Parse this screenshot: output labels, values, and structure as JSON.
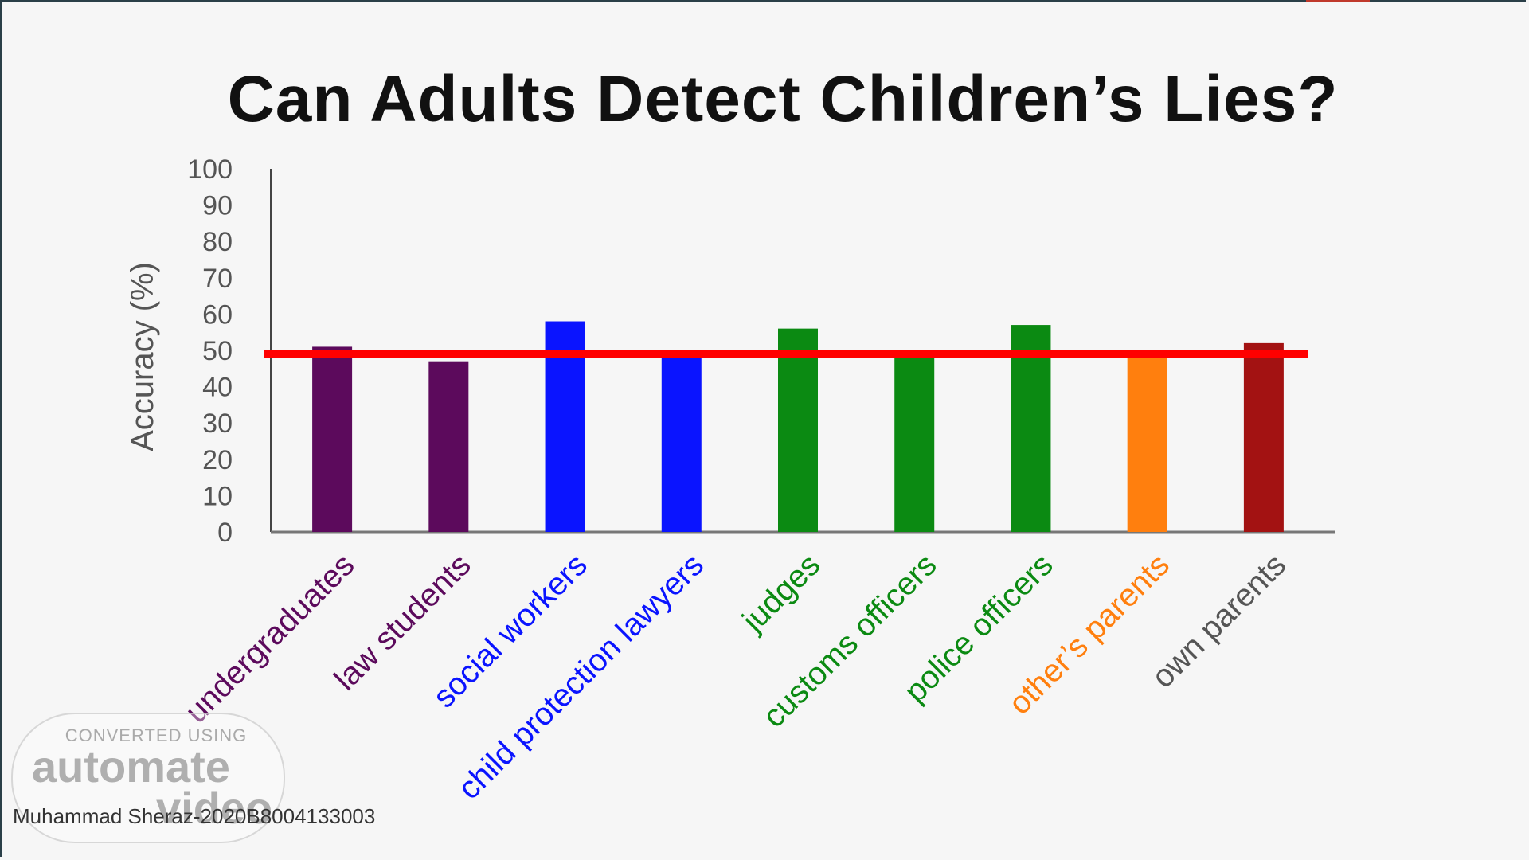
{
  "title": "Can Adults Detect Children’s Lies?",
  "chart_data": {
    "type": "bar",
    "ylabel": "Accuracy (%)",
    "ylim": [
      0,
      100
    ],
    "yticks": [
      0,
      10,
      20,
      30,
      40,
      50,
      60,
      70,
      80,
      90,
      100
    ],
    "categories": [
      "undergraduates",
      "law students",
      "social workers",
      "child protection lawyers",
      "judges",
      "customs officers",
      "police officers",
      "other’s parents",
      "own parents"
    ],
    "values": [
      51,
      47,
      58,
      48,
      56,
      48,
      57,
      48,
      52
    ],
    "bar_colors": [
      "#5c0a5c",
      "#5c0a5c",
      "#0a14ff",
      "#0a14ff",
      "#0b8a12",
      "#0b8a12",
      "#0b8a12",
      "#ff7f0e",
      "#a31212"
    ],
    "label_colors": [
      "#5c0a5c",
      "#5c0a5c",
      "#0a14ff",
      "#0a14ff",
      "#0b8a12",
      "#0b8a12",
      "#0b8a12",
      "#ff7f0e",
      "#555555"
    ],
    "reference_line": {
      "value": 49,
      "color": "#ff0000"
    },
    "grid": false,
    "legend": "none"
  },
  "watermark": {
    "top": "CONVERTED USING",
    "brand": "automate",
    "brand2": "video"
  },
  "author": "Muhammad Sheraz-2020B8004133003"
}
